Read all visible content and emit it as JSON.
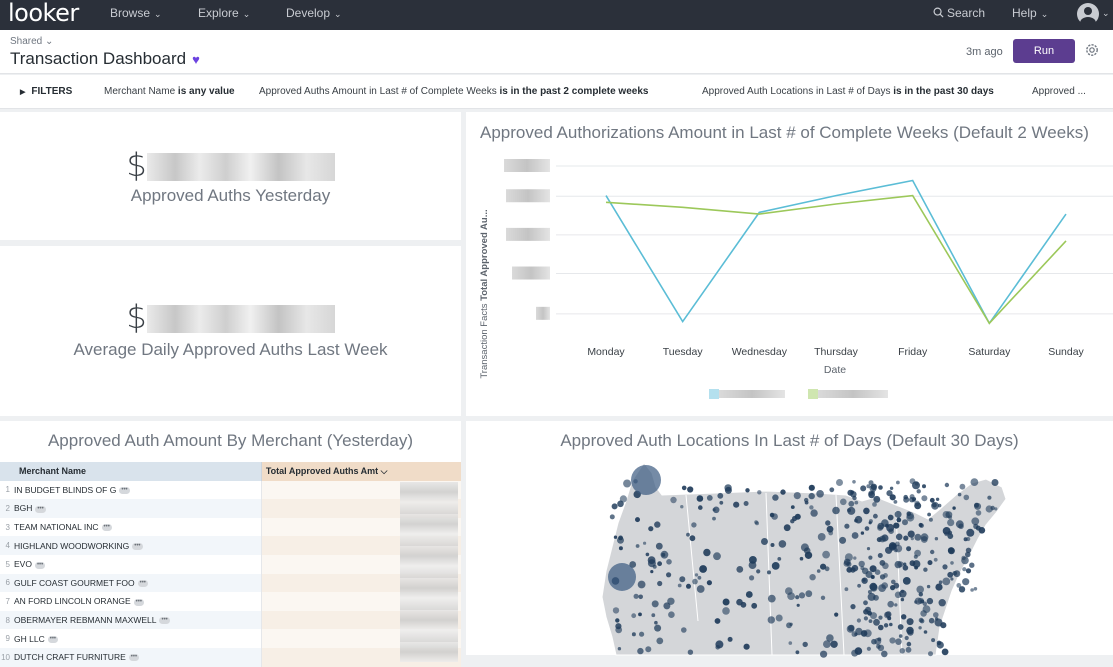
{
  "nav": {
    "logo": "looker",
    "menu": [
      {
        "label": "Browse",
        "chevron": "⌄"
      },
      {
        "label": "Explore",
        "chevron": "⌄"
      },
      {
        "label": "Develop",
        "chevron": "⌄"
      }
    ],
    "search_label": "Search",
    "search_icon": "search-icon",
    "help_label": "Help",
    "help_chevron": "⌄"
  },
  "header": {
    "breadcrumb": "Shared ⌄",
    "title": "Transaction Dashboard",
    "favorite_icon": "♥",
    "updated": "3m ago",
    "run_label": "Run"
  },
  "filters": {
    "toggle": "FILTERS",
    "items": [
      {
        "field": "Merchant Name",
        "condition": "is any value"
      },
      {
        "field": "Approved Auths Amount in Last # of Complete Weeks",
        "condition": "is in the past 2 complete weeks"
      },
      {
        "field": "Approved Auth Locations in Last # of Days",
        "condition": "is in the past 30 days"
      },
      {
        "field": "Approved ...",
        "condition": ""
      }
    ]
  },
  "tiles": {
    "yesterday": {
      "currency": "$",
      "label": "Approved Auths Yesterday"
    },
    "avg_week": {
      "currency": "$",
      "label": "Average Daily Approved Auths Last Week"
    },
    "line_chart": {
      "title": "Approved Authorizations Amount in Last # of Complete Weeks (Default 2 Weeks)"
    },
    "merchant_table": {
      "title": "Approved Auth Amount By Merchant (Yesterday)",
      "col_name": "Merchant Name",
      "col_amount": "Total Approved Auths Amt ⌵",
      "rows": [
        {
          "num": "1",
          "name": "IN BUDGET BLINDS OF G"
        },
        {
          "num": "2",
          "name": "BGH"
        },
        {
          "num": "3",
          "name": "TEAM NATIONAL INC"
        },
        {
          "num": "4",
          "name": "HIGHLAND WOODWORKING"
        },
        {
          "num": "5",
          "name": "EVO"
        },
        {
          "num": "6",
          "name": "GULF COAST GOURMET FOO"
        },
        {
          "num": "7",
          "name": "AN FORD LINCOLN ORANGE"
        },
        {
          "num": "8",
          "name": "OBERMAYER REBMANN MAXWELL"
        },
        {
          "num": "9",
          "name": "GH LLC"
        },
        {
          "num": "10",
          "name": "DUTCH CRAFT FURNITURE"
        }
      ],
      "more_glyph": "•••"
    },
    "map": {
      "title": "Approved Auth Locations In Last # of Days (Default 30 Days)"
    }
  },
  "chart_data": {
    "type": "line",
    "categories": [
      "Monday",
      "Tuesday",
      "Wednesday",
      "Thursday",
      "Friday",
      "Saturday",
      "Sunday"
    ],
    "xlabel": "Date",
    "ylabel_prefix": "Transaction Facts ",
    "ylabel_bold": "Total Approved Au...",
    "grid": true,
    "legend_placement": "bottom",
    "series": [
      {
        "color": "#5bbdd6",
        "values": [
          0.8,
          0.05,
          0.7,
          0.8,
          0.89,
          0.04,
          0.69
        ]
      },
      {
        "color": "#9cc85a",
        "values": [
          0.76,
          0.73,
          0.69,
          0.75,
          0.8,
          0.04,
          0.53
        ]
      }
    ],
    "ylim": [
      0,
      1
    ]
  }
}
